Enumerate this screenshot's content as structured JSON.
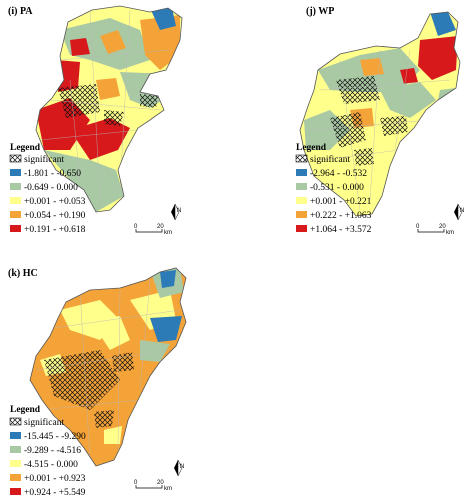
{
  "panels": [
    {
      "id": "i",
      "title": "(i) PA",
      "legend": {
        "title": "Legend",
        "significant_label": "significant",
        "classes": [
          {
            "label": "-1.801 - -0.650",
            "color": "#2c7bb6"
          },
          {
            "label": "-0.649 - 0.000",
            "color": "#a9c9a4"
          },
          {
            "label": "+0.001 - +0.053",
            "color": "#ffff8c"
          },
          {
            "label": "+0.054 - +0.190",
            "color": "#f4a339"
          },
          {
            "label": "+0.191 - +0.618",
            "color": "#d7191c"
          }
        ]
      },
      "scale": {
        "start": "0",
        "end": "20",
        "unit": "km"
      },
      "north": "N"
    },
    {
      "id": "j",
      "title": "(j) WP",
      "legend": {
        "title": "Legend",
        "significant_label": "significant",
        "classes": [
          {
            "label": "-2.964 - -0.532",
            "color": "#2c7bb6"
          },
          {
            "label": "-0.531 - 0.000",
            "color": "#a9c9a4"
          },
          {
            "label": "+0.001 - +0.221",
            "color": "#ffff8c"
          },
          {
            "label": "+0.222 - +1.063",
            "color": "#f4a339"
          },
          {
            "label": "+1.064 - +3.572",
            "color": "#d7191c"
          }
        ]
      },
      "scale": {
        "start": "0",
        "end": "20",
        "unit": "km"
      },
      "north": "N"
    },
    {
      "id": "k",
      "title": "(k) HC",
      "legend": {
        "title": "Legend",
        "significant_label": "significant",
        "classes": [
          {
            "label": "-15.445 - -9.290",
            "color": "#2c7bb6"
          },
          {
            "label": "-9.289 - -4.516",
            "color": "#a9c9a4"
          },
          {
            "label": "-4.515 - 0.000",
            "color": "#ffff8c"
          },
          {
            "label": "+0.001 - +0.923",
            "color": "#f4a339"
          },
          {
            "label": "+0.924 - +5.549",
            "color": "#d7191c"
          }
        ]
      },
      "scale": {
        "start": "0",
        "end": "20",
        "unit": "km"
      },
      "north": "N"
    }
  ]
}
